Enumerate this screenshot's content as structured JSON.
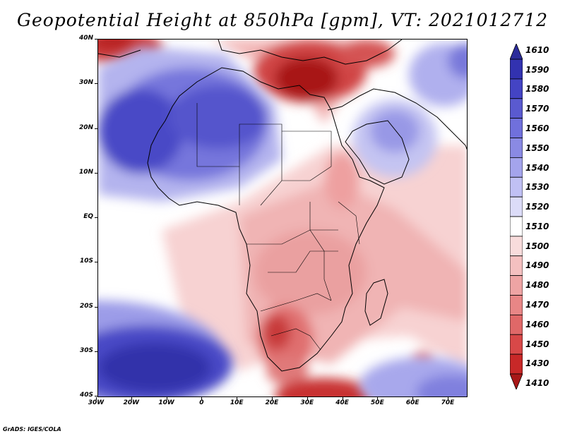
{
  "title": "Geopotential Height at 850hPa [gpm], VT: 2021012712",
  "footer": "GrADS: IGES/COLA",
  "axes": {
    "lat_labels": [
      "40N",
      "30N",
      "20N",
      "10N",
      "EQ",
      "10S",
      "20S",
      "30S",
      "40S"
    ],
    "lon_labels": [
      "30W",
      "20W",
      "10W",
      "0",
      "10E",
      "20E",
      "30E",
      "40E",
      "50E",
      "60E",
      "70E"
    ]
  },
  "colorbar": {
    "labels": [
      "1610",
      "1590",
      "1580",
      "1570",
      "1560",
      "1550",
      "1540",
      "1530",
      "1520",
      "1510",
      "1500",
      "1490",
      "1480",
      "1470",
      "1460",
      "1450",
      "1430",
      "1410"
    ],
    "colors": [
      "#2b2b9a",
      "#3232b0",
      "#4444c4",
      "#5a5ad0",
      "#7070dc",
      "#8a8ae4",
      "#a4a4ec",
      "#c0c0f4",
      "#dcdcf8",
      "#ffffff",
      "#f8dcdc",
      "#f4c0c0",
      "#eea4a4",
      "#e88686",
      "#e06868",
      "#d84848",
      "#c82828",
      "#a81818"
    ]
  },
  "colors": {
    "frame": "#000000",
    "coast": "#000000"
  }
}
